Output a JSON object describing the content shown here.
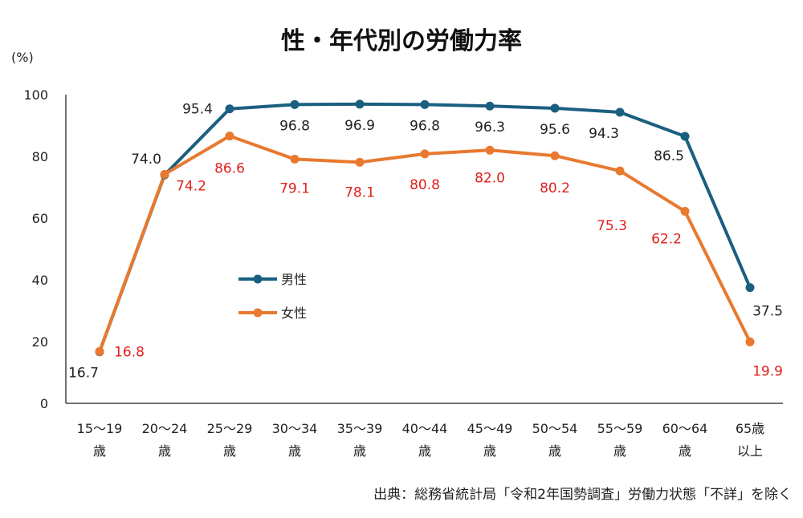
{
  "chart_data": {
    "type": "line",
    "title": "性・年代別の労働力率",
    "ylabel": "(%)",
    "ylim": [
      0,
      100
    ],
    "yticks": [
      0,
      20,
      40,
      60,
      80,
      100
    ],
    "grid": false,
    "legend_position": "center-left",
    "categories": [
      [
        "15～19",
        "歳"
      ],
      [
        "20～24",
        "歳"
      ],
      [
        "25～29",
        "歳"
      ],
      [
        "30～34",
        "歳"
      ],
      [
        "35～39",
        "歳"
      ],
      [
        "40～44",
        "歳"
      ],
      [
        "45～49",
        "歳"
      ],
      [
        "50～54",
        "歳"
      ],
      [
        "55～59",
        "歳"
      ],
      [
        "60～64",
        "歳"
      ],
      [
        "65歳",
        "以上"
      ]
    ],
    "series": [
      {
        "name": "男性",
        "color": "#1b5f80",
        "label_color": "#222222",
        "values": [
          16.7,
          74.0,
          95.4,
          96.8,
          96.9,
          96.8,
          96.3,
          95.6,
          94.3,
          86.5,
          37.5
        ]
      },
      {
        "name": "女性",
        "color": "#e8792f",
        "label_color": "#e0201c",
        "values": [
          16.8,
          74.2,
          86.6,
          79.1,
          78.1,
          80.8,
          82.0,
          80.2,
          75.3,
          62.2,
          19.9
        ]
      }
    ],
    "source": "出典：総務省統計局「令和2年国勢調査」労働力状態「不詳」を除く"
  }
}
